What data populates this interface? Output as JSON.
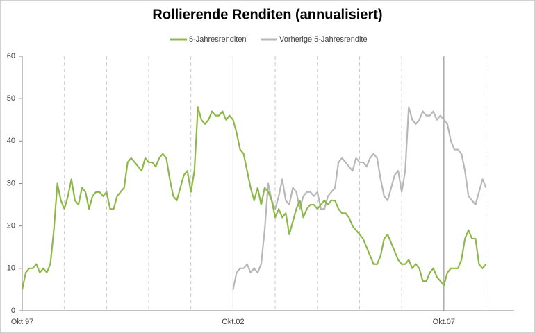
{
  "chart_data": {
    "type": "line",
    "title": "Rollierende Renditen (annualisiert)",
    "categories": [
      "Okt.97",
      null,
      null,
      null,
      null,
      null,
      null,
      null,
      null,
      null,
      null,
      null,
      null,
      null,
      null,
      null,
      null,
      null,
      null,
      null,
      null,
      null,
      null,
      null,
      null,
      null,
      null,
      null,
      null,
      null,
      null,
      null,
      null,
      null,
      null,
      null,
      null,
      null,
      null,
      null,
      null,
      null,
      null,
      null,
      null,
      null,
      null,
      null,
      null,
      null,
      null,
      null,
      null,
      null,
      null,
      null,
      null,
      null,
      null,
      null,
      "Okt.02",
      null,
      null,
      null,
      null,
      null,
      null,
      null,
      null,
      null,
      null,
      null,
      null,
      null,
      null,
      null,
      null,
      null,
      null,
      null,
      null,
      null,
      null,
      null,
      null,
      null,
      null,
      null,
      null,
      null,
      null,
      null,
      null,
      null,
      null,
      null,
      null,
      null,
      null,
      null,
      null,
      null,
      null,
      null,
      null,
      null,
      null,
      null,
      null,
      null,
      null,
      null,
      null,
      null,
      null,
      null,
      null,
      null,
      null,
      null,
      "Okt.07",
      null,
      null,
      null,
      null,
      null,
      null,
      null,
      null,
      null,
      null,
      null,
      null,
      null,
      null,
      null,
      null,
      null,
      null,
      null,
      null
    ],
    "series": [
      {
        "name": "5-Jahresrenditen",
        "color": "#8db849",
        "values": [
          5,
          9,
          10,
          10,
          11,
          9,
          10,
          9,
          11,
          19,
          30,
          26,
          24,
          27,
          31,
          26,
          25,
          29,
          28,
          24,
          27,
          28,
          28,
          27,
          28,
          24,
          24,
          27,
          28,
          29,
          35,
          36,
          35,
          34,
          33,
          36,
          35,
          35,
          34,
          36,
          37,
          36,
          31,
          27,
          26,
          29,
          32,
          33,
          28,
          33,
          48,
          45,
          44,
          45,
          47,
          46,
          46,
          47,
          45,
          46,
          45,
          42,
          38,
          37,
          33,
          29,
          26,
          29,
          25,
          29,
          28,
          26,
          22,
          24,
          22,
          23,
          18,
          21,
          24,
          26,
          22,
          24,
          25,
          25,
          24,
          25,
          26,
          25,
          26,
          26,
          24,
          23,
          23,
          22,
          20,
          19,
          18,
          17,
          15,
          13,
          11,
          11,
          13,
          17,
          18,
          16,
          14,
          12,
          11,
          11,
          12,
          10,
          11,
          10,
          7,
          7,
          9,
          10,
          8,
          7,
          6,
          9,
          10,
          10,
          10,
          12,
          17,
          19,
          17,
          17,
          11,
          10,
          11,
          null,
          null,
          null,
          null,
          null,
          null,
          null,
          null
        ]
      },
      {
        "name": "Vorherige 5-Jahresrendite",
        "color": "#b7b7b7",
        "values": [
          null,
          null,
          null,
          null,
          null,
          null,
          null,
          null,
          null,
          null,
          null,
          null,
          null,
          null,
          null,
          null,
          null,
          null,
          null,
          null,
          null,
          null,
          null,
          null,
          null,
          null,
          null,
          null,
          null,
          null,
          null,
          null,
          null,
          null,
          null,
          null,
          null,
          null,
          null,
          null,
          null,
          null,
          null,
          null,
          null,
          null,
          null,
          null,
          null,
          null,
          null,
          null,
          null,
          null,
          null,
          null,
          null,
          null,
          null,
          null,
          5,
          9,
          10,
          10,
          11,
          9,
          10,
          9,
          11,
          19,
          30,
          26,
          24,
          27,
          31,
          26,
          25,
          29,
          28,
          24,
          27,
          28,
          28,
          27,
          28,
          24,
          24,
          27,
          28,
          29,
          35,
          36,
          35,
          34,
          33,
          36,
          35,
          35,
          34,
          36,
          37,
          36,
          31,
          27,
          26,
          29,
          32,
          33,
          28,
          33,
          48,
          45,
          44,
          45,
          47,
          46,
          46,
          47,
          45,
          46,
          45,
          44,
          40,
          38,
          38,
          37,
          33,
          27,
          26,
          25,
          28,
          31,
          29,
          null,
          null,
          null,
          null,
          null,
          null,
          null,
          null
        ]
      }
    ],
    "ylim": [
      0,
      60
    ],
    "yticks": [
      0,
      10,
      20,
      30,
      40,
      50,
      60
    ]
  }
}
